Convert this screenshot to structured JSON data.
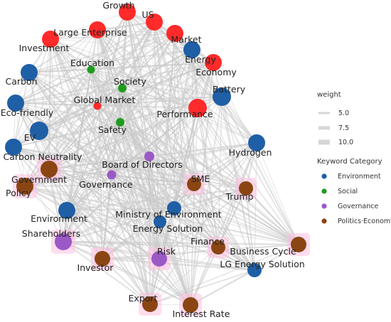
{
  "colors": {
    "environment": "#1f5fa6",
    "social": "#1e9c1e",
    "governance": "#9b59c6",
    "politics_economy": "#8b4513",
    "emphasis": "#ff2a2a",
    "edge": "#c8c8c8",
    "halo": "#ffc0e0"
  },
  "nodes": [
    {
      "id": "growth",
      "label": "Growth",
      "category": "politics_economy",
      "emphasis": true
    },
    {
      "id": "us",
      "label": "US",
      "category": "politics_economy",
      "emphasis": true
    },
    {
      "id": "large-enterprise",
      "label": "Large Enterprise",
      "category": "politics_economy",
      "emphasis": true
    },
    {
      "id": "market",
      "label": "Market",
      "category": "politics_economy",
      "emphasis": true
    },
    {
      "id": "investment",
      "label": "Investment",
      "category": "politics_economy",
      "emphasis": true
    },
    {
      "id": "energy",
      "label": "Energy",
      "category": "environment",
      "emphasis": false
    },
    {
      "id": "economy",
      "label": "Economy",
      "category": "politics_economy",
      "emphasis": true
    },
    {
      "id": "education",
      "label": "Education",
      "category": "social",
      "emphasis": false
    },
    {
      "id": "carbon",
      "label": "Carbon",
      "category": "environment",
      "emphasis": false
    },
    {
      "id": "society",
      "label": "Society",
      "category": "social",
      "emphasis": false
    },
    {
      "id": "battery",
      "label": "Battery",
      "category": "environment",
      "emphasis": false
    },
    {
      "id": "global-market",
      "label": "Global Market",
      "category": "politics_economy",
      "emphasis": true
    },
    {
      "id": "eco-friendly",
      "label": "Eco-friendly",
      "category": "environment",
      "emphasis": false
    },
    {
      "id": "performance",
      "label": "Performance",
      "category": "politics_economy",
      "emphasis": true
    },
    {
      "id": "safety",
      "label": "Safety",
      "category": "social",
      "emphasis": false
    },
    {
      "id": "ev",
      "label": "EV",
      "category": "environment",
      "emphasis": false
    },
    {
      "id": "hydrogen",
      "label": "Hydrogen",
      "category": "environment",
      "emphasis": false
    },
    {
      "id": "carbon-neutrality",
      "label": "Carbon Neutrality",
      "category": "environment",
      "emphasis": false
    },
    {
      "id": "board-of-directors",
      "label": "Board of Directors",
      "category": "governance",
      "emphasis": false
    },
    {
      "id": "government",
      "label": "Government",
      "category": "politics_economy",
      "emphasis": false
    },
    {
      "id": "governance",
      "label": "Governance",
      "category": "governance",
      "emphasis": false
    },
    {
      "id": "sme",
      "label": "SME",
      "category": "politics_economy",
      "emphasis": false
    },
    {
      "id": "policy",
      "label": "Policy",
      "category": "politics_economy",
      "emphasis": false
    },
    {
      "id": "trump",
      "label": "Trump",
      "category": "politics_economy",
      "emphasis": false
    },
    {
      "id": "environment",
      "label": "Environment",
      "category": "environment",
      "emphasis": false
    },
    {
      "id": "ministry-of-environment",
      "label": "Ministry of Environment",
      "category": "environment",
      "emphasis": false
    },
    {
      "id": "energy-solution",
      "label": "Energy Solution",
      "category": "environment",
      "emphasis": false
    },
    {
      "id": "shareholders",
      "label": "Shareholders",
      "category": "governance",
      "emphasis": false
    },
    {
      "id": "finance",
      "label": "Finance",
      "category": "politics_economy",
      "emphasis": false
    },
    {
      "id": "risk",
      "label": "Risk",
      "category": "governance",
      "emphasis": false
    },
    {
      "id": "business-cycle",
      "label": "Business Cycle",
      "category": "politics_economy",
      "emphasis": false
    },
    {
      "id": "investor",
      "label": "Investor",
      "category": "politics_economy",
      "emphasis": false
    },
    {
      "id": "lg-energy-solution",
      "label": "LG Energy Solution",
      "category": "environment",
      "emphasis": false
    },
    {
      "id": "export",
      "label": "Export",
      "category": "politics_economy",
      "emphasis": false
    },
    {
      "id": "interest-rate",
      "label": "Interest Rate",
      "category": "politics_economy",
      "emphasis": false
    }
  ],
  "legend": {
    "weight_title": "weight",
    "weight_items": [
      "5.0",
      "7.5",
      "10.0"
    ],
    "category_title": "Keyword Category",
    "category_items": [
      {
        "label": "Environment",
        "category": "environment"
      },
      {
        "label": "Social",
        "category": "social"
      },
      {
        "label": "Governance",
        "category": "governance"
      },
      {
        "label": "Politics·Economy",
        "category": "politics_economy"
      }
    ]
  }
}
